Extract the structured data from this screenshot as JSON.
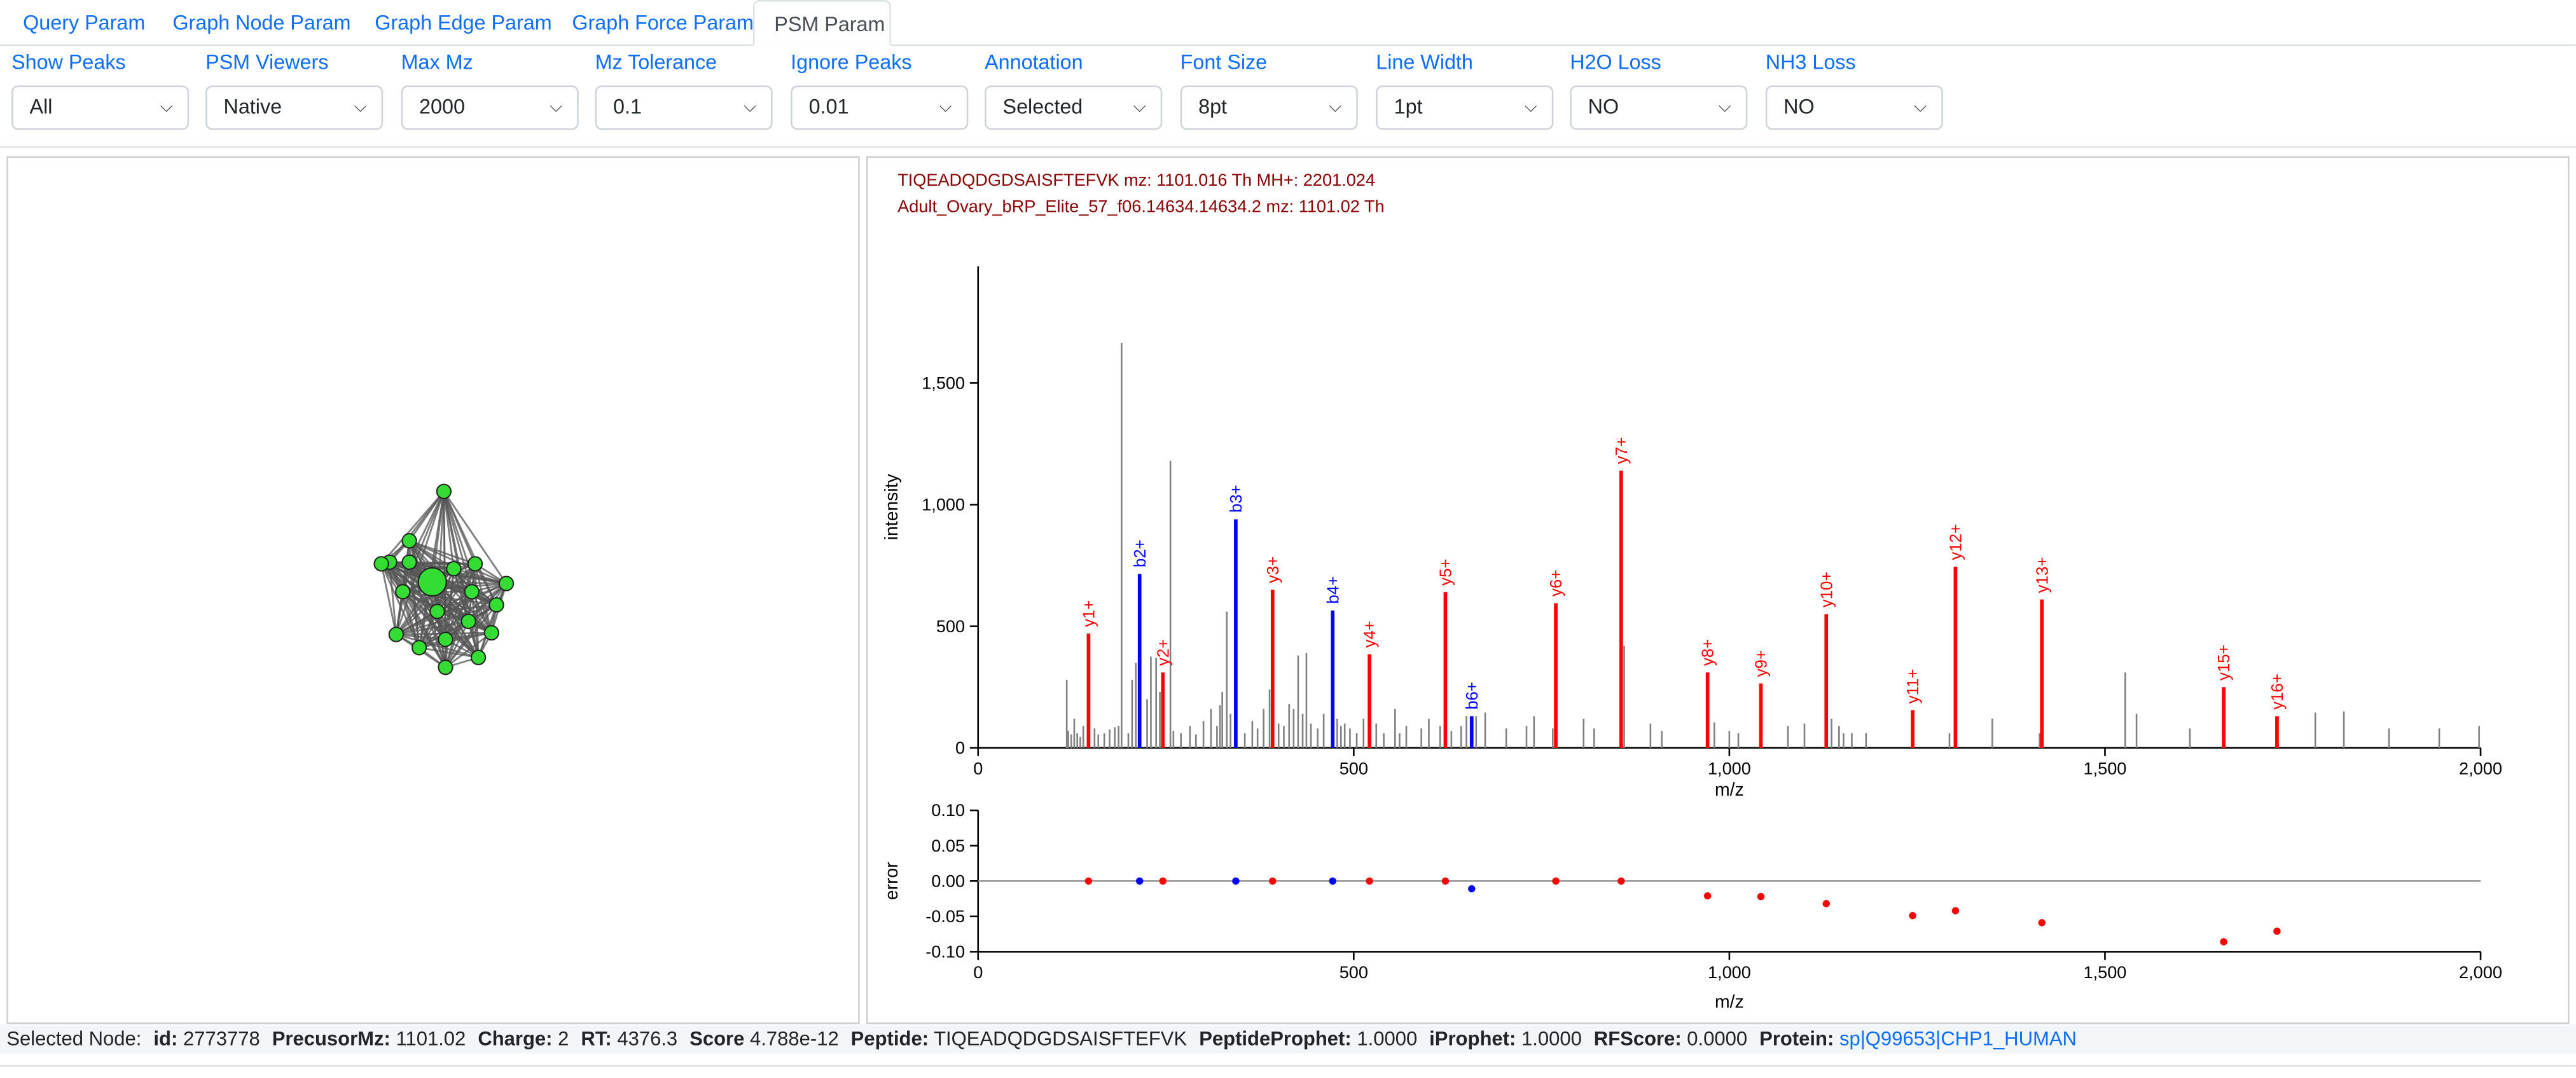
{
  "tabs": [
    {
      "label": "Query Param",
      "active": false
    },
    {
      "label": "Graph Node Param",
      "active": false
    },
    {
      "label": "Graph Edge Param",
      "active": false
    },
    {
      "label": "Graph Force Param",
      "active": false
    },
    {
      "label": "PSM Param",
      "active": true
    }
  ],
  "params": [
    {
      "label": "Show Peaks",
      "value": "All"
    },
    {
      "label": "PSM Viewers",
      "value": "Native"
    },
    {
      "label": "Max Mz",
      "value": "2000"
    },
    {
      "label": "Mz Tolerance",
      "value": "0.1"
    },
    {
      "label": "Ignore Peaks",
      "value": "0.01"
    },
    {
      "label": "Annotation",
      "value": "Selected"
    },
    {
      "label": "Font Size",
      "value": "8pt"
    },
    {
      "label": "Line Width",
      "value": "1pt"
    },
    {
      "label": "H2O Loss",
      "value": "NO"
    },
    {
      "label": "NH3 Loss",
      "value": "NO"
    }
  ],
  "psm": {
    "line1": "TIQEADQDGDSAISFTEFVK mz: 1101.016 Th MH+: 2201.024",
    "line2": "Adult_Ovary_bRP_Elite_57_f06.14634.14634.2 mz: 1101.02 Th"
  },
  "colors": {
    "y_ion": "#ff0000",
    "b_ion": "#0000ff",
    "peak": "#808080",
    "node": "#33dd33",
    "edge": "#555555",
    "link": "#0d6efd"
  },
  "status": {
    "prefix": "Selected Node:",
    "id_label": "id:",
    "id": "2773778",
    "precursor_label": "PrecusorMz:",
    "precursor": "1101.02",
    "charge_label": "Charge:",
    "charge": "2",
    "rt_label": "RT:",
    "rt": "4376.3",
    "score_label": "Score",
    "score": "4.788e-12",
    "peptide_label": "Peptide:",
    "peptide": "TIQEADQDGDSAISFTEFVK",
    "pp_label": "PeptideProphet:",
    "pp": "1.0000",
    "ip_label": "iProphet:",
    "ip": "1.0000",
    "rf_label": "RFScore:",
    "rf": "0.0000",
    "protein_label": "Protein:",
    "protein": "sp|Q99653|CHP1_HUMAN"
  },
  "chart_data": [
    {
      "type": "bar",
      "xlabel": "m/z",
      "ylabel": "intensity",
      "xlim": [
        0,
        2000
      ],
      "ylim": [
        0,
        1980
      ],
      "xticks": [
        0,
        500,
        1000,
        1500,
        2000
      ],
      "xtick_labels": [
        "0",
        "500",
        "1,000",
        "1,500",
        "2,000"
      ],
      "yticks": [
        0,
        500,
        1000,
        1500
      ],
      "ytick_labels": [
        "0",
        "500",
        "1,000",
        "1,500"
      ],
      "annotated_peaks": [
        {
          "label": "y1+",
          "mz": 147,
          "intensity": 470,
          "series": "y"
        },
        {
          "label": "b2+",
          "mz": 215,
          "intensity": 715,
          "series": "b"
        },
        {
          "label": "y2+",
          "mz": 246,
          "intensity": 310,
          "series": "y"
        },
        {
          "label": "b3+",
          "mz": 343,
          "intensity": 940,
          "series": "b"
        },
        {
          "label": "y3+",
          "mz": 392,
          "intensity": 650,
          "series": "y"
        },
        {
          "label": "b4+",
          "mz": 472,
          "intensity": 565,
          "series": "b"
        },
        {
          "label": "y4+",
          "mz": 521,
          "intensity": 385,
          "series": "y"
        },
        {
          "label": "y5+",
          "mz": 622,
          "intensity": 640,
          "series": "y"
        },
        {
          "label": "b6+",
          "mz": 657,
          "intensity": 130,
          "series": "b"
        },
        {
          "label": "y6+",
          "mz": 769,
          "intensity": 595,
          "series": "y"
        },
        {
          "label": "y7+",
          "mz": 856,
          "intensity": 1140,
          "series": "y"
        },
        {
          "label": "y8+",
          "mz": 971,
          "intensity": 310,
          "series": "y"
        },
        {
          "label": "y9+",
          "mz": 1042,
          "intensity": 265,
          "series": "y"
        },
        {
          "label": "y10+",
          "mz": 1129,
          "intensity": 550,
          "series": "y"
        },
        {
          "label": "y11+",
          "mz": 1244,
          "intensity": 155,
          "series": "y"
        },
        {
          "label": "y12+",
          "mz": 1301,
          "intensity": 745,
          "series": "y"
        },
        {
          "label": "y13+",
          "mz": 1416,
          "intensity": 610,
          "series": "y"
        },
        {
          "label": "y15+",
          "mz": 1658,
          "intensity": 250,
          "series": "y"
        },
        {
          "label": "y16+",
          "mz": 1729,
          "intensity": 130,
          "series": "y"
        }
      ],
      "unannotated_peaks": [
        [
          118,
          280
        ],
        [
          120,
          70
        ],
        [
          124,
          55
        ],
        [
          128,
          120
        ],
        [
          132,
          60
        ],
        [
          136,
          45
        ],
        [
          140,
          90
        ],
        [
          155,
          80
        ],
        [
          160,
          55
        ],
        [
          168,
          60
        ],
        [
          175,
          75
        ],
        [
          182,
          85
        ],
        [
          187,
          90
        ],
        [
          191,
          1665
        ],
        [
          200,
          60
        ],
        [
          205,
          280
        ],
        [
          210,
          350
        ],
        [
          225,
          200
        ],
        [
          230,
          375
        ],
        [
          237,
          370
        ],
        [
          242,
          230
        ],
        [
          256,
          1180
        ],
        [
          260,
          70
        ],
        [
          270,
          60
        ],
        [
          282,
          90
        ],
        [
          290,
          55
        ],
        [
          300,
          110
        ],
        [
          310,
          160
        ],
        [
          318,
          90
        ],
        [
          322,
          175
        ],
        [
          325,
          230
        ],
        [
          331,
          560
        ],
        [
          336,
          140
        ],
        [
          355,
          60
        ],
        [
          365,
          110
        ],
        [
          372,
          80
        ],
        [
          380,
          160
        ],
        [
          388,
          240
        ],
        [
          400,
          100
        ],
        [
          407,
          90
        ],
        [
          414,
          180
        ],
        [
          420,
          160
        ],
        [
          426,
          380
        ],
        [
          432,
          140
        ],
        [
          437,
          390
        ],
        [
          443,
          100
        ],
        [
          452,
          80
        ],
        [
          460,
          140
        ],
        [
          478,
          120
        ],
        [
          483,
          90
        ],
        [
          488,
          100
        ],
        [
          495,
          80
        ],
        [
          504,
          60
        ],
        [
          513,
          120
        ],
        [
          520,
          160
        ],
        [
          530,
          100
        ],
        [
          540,
          60
        ],
        [
          555,
          160
        ],
        [
          561,
          60
        ],
        [
          570,
          90
        ],
        [
          590,
          80
        ],
        [
          600,
          120
        ],
        [
          615,
          90
        ],
        [
          630,
          70
        ],
        [
          643,
          90
        ],
        [
          650,
          130
        ],
        [
          663,
          130
        ],
        [
          675,
          145
        ],
        [
          703,
          80
        ],
        [
          730,
          90
        ],
        [
          740,
          130
        ],
        [
          765,
          80
        ],
        [
          806,
          120
        ],
        [
          820,
          80
        ],
        [
          860,
          420
        ],
        [
          895,
          100
        ],
        [
          910,
          70
        ],
        [
          980,
          105
        ],
        [
          1000,
          70
        ],
        [
          1012,
          60
        ],
        [
          1078,
          90
        ],
        [
          1100,
          100
        ],
        [
          1136,
          120
        ],
        [
          1146,
          90
        ],
        [
          1152,
          60
        ],
        [
          1163,
          60
        ],
        [
          1182,
          60
        ],
        [
          1293,
          60
        ],
        [
          1350,
          120
        ],
        [
          1413,
          60
        ],
        [
          1527,
          310
        ],
        [
          1542,
          140
        ],
        [
          1613,
          80
        ],
        [
          1780,
          145
        ],
        [
          1818,
          150
        ],
        [
          1878,
          80
        ],
        [
          1945,
          80
        ],
        [
          1998,
          90
        ]
      ]
    },
    {
      "type": "scatter",
      "xlabel": "m/z",
      "ylabel": "error",
      "xlim": [
        0,
        2000
      ],
      "ylim": [
        -0.1,
        0.1
      ],
      "xticks": [
        0,
        500,
        1000,
        1500,
        2000
      ],
      "xtick_labels": [
        "0",
        "500",
        "1,000",
        "1,500",
        "2,000"
      ],
      "yticks": [
        0.1,
        0.05,
        0,
        -0.05,
        -0.1
      ],
      "ytick_labels": [
        "0.10",
        "0.05",
        "0.00",
        "-0.05",
        "-0.10"
      ],
      "points": [
        {
          "x": 147,
          "y": 0.0,
          "series": "y"
        },
        {
          "x": 215,
          "y": 0.0,
          "series": "b"
        },
        {
          "x": 246,
          "y": 0.0,
          "series": "y"
        },
        {
          "x": 343,
          "y": 0.0,
          "series": "b"
        },
        {
          "x": 392,
          "y": 0.0,
          "series": "y"
        },
        {
          "x": 472,
          "y": 0.0,
          "series": "b"
        },
        {
          "x": 521,
          "y": 0.0,
          "series": "y"
        },
        {
          "x": 622,
          "y": 0.0,
          "series": "y"
        },
        {
          "x": 657,
          "y": -0.011,
          "series": "b"
        },
        {
          "x": 769,
          "y": 0.0,
          "series": "y"
        },
        {
          "x": 856,
          "y": 0.0,
          "series": "y"
        },
        {
          "x": 971,
          "y": -0.021,
          "series": "y"
        },
        {
          "x": 1042,
          "y": -0.022,
          "series": "y"
        },
        {
          "x": 1129,
          "y": -0.032,
          "series": "y"
        },
        {
          "x": 1244,
          "y": -0.049,
          "series": "y"
        },
        {
          "x": 1301,
          "y": -0.042,
          "series": "y"
        },
        {
          "x": 1416,
          "y": -0.059,
          "series": "y"
        },
        {
          "x": 1658,
          "y": -0.086,
          "series": "y"
        },
        {
          "x": 1729,
          "y": -0.071,
          "series": "y"
        }
      ]
    }
  ]
}
